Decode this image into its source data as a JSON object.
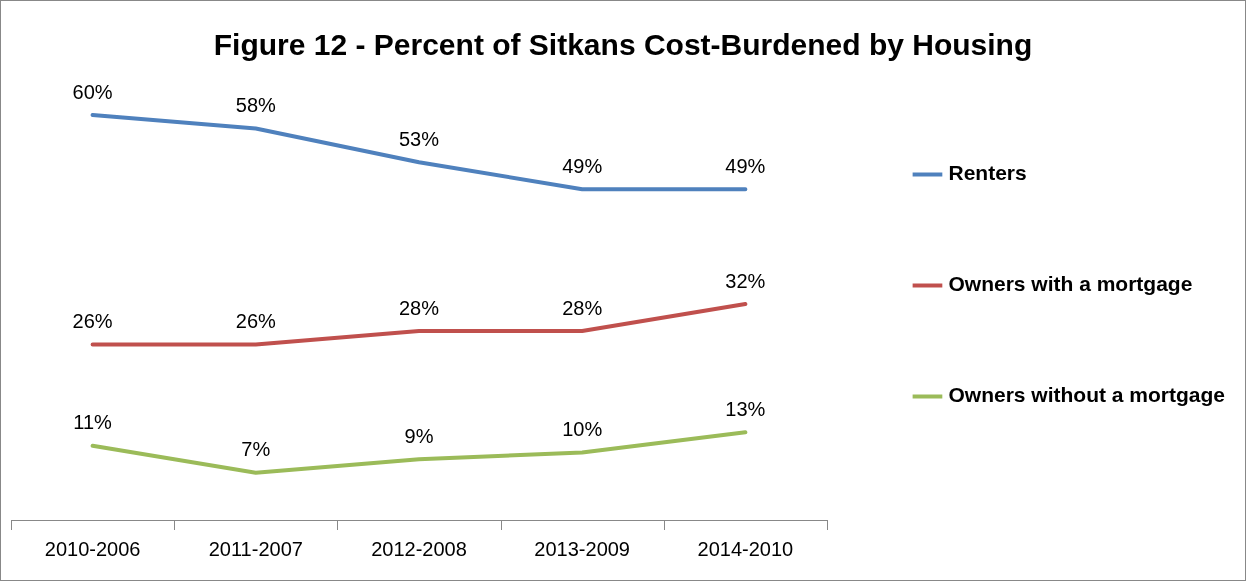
{
  "chart_data": {
    "type": "line",
    "title": "Figure 12 - Percent of Sitkans Cost-Burdened by Housing",
    "categories": [
      "2010-2006",
      "2011-2007",
      "2012-2008",
      "2013-2009",
      "2014-2010"
    ],
    "series": [
      {
        "name": "Renters",
        "color": "#4f81bd",
        "values": [
          60,
          58,
          53,
          49,
          49
        ],
        "value_labels": [
          "60%",
          "58%",
          "53%",
          "49%",
          "49%"
        ]
      },
      {
        "name": "Owners with a mortgage",
        "color": "#c0504d",
        "values": [
          26,
          26,
          28,
          28,
          32
        ],
        "value_labels": [
          "26%",
          "26%",
          "28%",
          "28%",
          "32%"
        ]
      },
      {
        "name": "Owners without a mortgage",
        "color": "#9bbb59",
        "values": [
          11,
          7,
          9,
          10,
          13
        ],
        "value_labels": [
          "11%",
          "7%",
          "9%",
          "10%",
          "13%"
        ]
      }
    ],
    "legend": "right",
    "tick_labels": "x"
  }
}
